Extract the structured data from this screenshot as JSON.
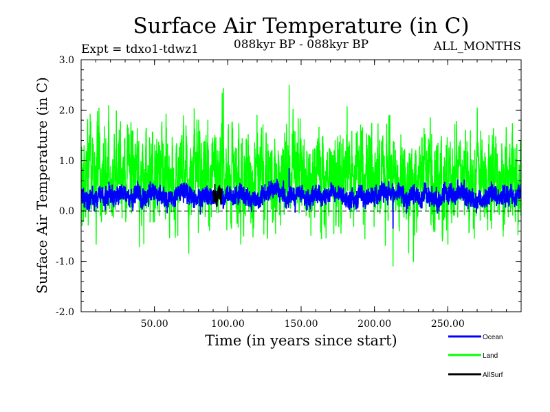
{
  "chart_data": {
    "type": "line",
    "title": "Surface Air Temperature (in C)",
    "subtitle_left": "Expt = tdxo1-tdwz1",
    "subtitle_center": "088kyr BP - 088kyr BP",
    "subtitle_right": "ALL_MONTHS",
    "xlabel": "Time (in years since start)",
    "ylabel": "Surface Air Temperature (in C)",
    "xlim": [
      0,
      300
    ],
    "ylim": [
      -2.0,
      3.0
    ],
    "x_ticks": [
      50,
      100,
      150,
      200,
      250
    ],
    "x_tick_labels": [
      "50.00",
      "100.00",
      "150.00",
      "200.00",
      "250.00"
    ],
    "y_ticks": [
      -2.0,
      -1.0,
      0.0,
      1.0,
      2.0,
      3.0
    ],
    "y_tick_labels": [
      "-2.0",
      "-1.0",
      "0.0",
      "1.0",
      "2.0",
      "3.0"
    ],
    "reference_line": 0.0,
    "series": [
      {
        "name": "Land",
        "color": "#00ff00",
        "mean": 0.7,
        "spread": 0.45,
        "min": -1.1,
        "max": 2.5
      },
      {
        "name": "Ocean",
        "color": "#0000ff",
        "mean": 0.3,
        "spread": 0.2,
        "min": -0.35,
        "max": 0.85
      },
      {
        "name": "AllSurf",
        "color": "#000000",
        "mean": 0.45,
        "spread": 0.25,
        "min": -0.2,
        "max": 1.1
      }
    ],
    "legend": {
      "placement": "bottom-right",
      "items": [
        "Ocean",
        "Land",
        "AllSurf"
      ]
    }
  }
}
